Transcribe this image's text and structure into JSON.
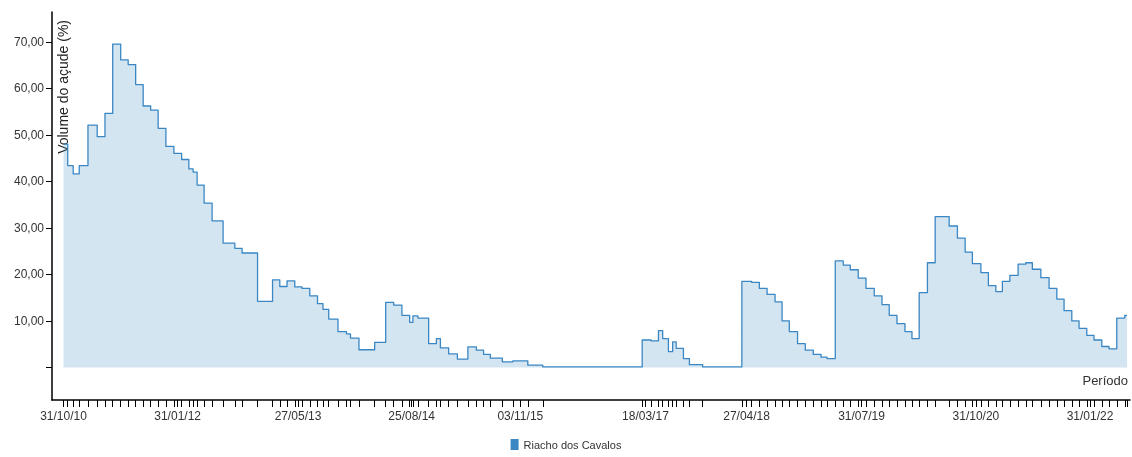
{
  "chart_data": {
    "type": "step",
    "xlabel": "Período",
    "ylabel": "Volume do açude (%)",
    "x": [
      "2010-10-31",
      "2010-11-17",
      "2010-12-09",
      "2011-01-02",
      "2011-02-06",
      "2011-03-15",
      "2011-04-15",
      "2011-05-16",
      "2011-06-17",
      "2011-07-17",
      "2011-08-16",
      "2011-09-15",
      "2011-10-15",
      "2011-11-14",
      "2011-12-15",
      "2012-01-16",
      "2012-02-16",
      "2012-03-16",
      "2012-04-02",
      "2012-04-18",
      "2012-05-16",
      "2012-06-17",
      "2012-07-31",
      "2012-09-16",
      "2012-10-15",
      "2012-12-16",
      "2013-02-14",
      "2013-03-15",
      "2013-04-13",
      "2013-05-14",
      "2013-06-12",
      "2013-07-13",
      "2013-08-13",
      "2013-09-04",
      "2013-09-27",
      "2013-11-03",
      "2013-12-07",
      "2013-12-23",
      "2014-01-26",
      "2014-03-30",
      "2014-05-13",
      "2014-06-14",
      "2014-07-17",
      "2014-08-17",
      "2014-08-30",
      "2014-09-19",
      "2014-11-01",
      "2014-12-02",
      "2014-12-18",
      "2015-01-20",
      "2015-02-24",
      "2015-04-07",
      "2015-05-11",
      "2015-06-09",
      "2015-07-06",
      "2015-08-23",
      "2015-10-04",
      "2015-12-03",
      "2016-02-01",
      "2017-03-05",
      "2017-04-10",
      "2017-05-09",
      "2017-05-26",
      "2017-06-18",
      "2017-07-05",
      "2017-07-19",
      "2017-08-17",
      "2017-09-10",
      "2017-11-02",
      "2018-04-08",
      "2018-05-17",
      "2018-06-17",
      "2018-07-18",
      "2018-08-19",
      "2018-09-16",
      "2018-10-15",
      "2018-11-17",
      "2018-12-18",
      "2019-01-19",
      "2019-02-19",
      "2019-03-15",
      "2019-04-17",
      "2019-05-19",
      "2019-06-16",
      "2019-07-18",
      "2019-08-18",
      "2019-09-20",
      "2019-10-21",
      "2019-11-19",
      "2019-12-20",
      "2020-01-21",
      "2020-02-18",
      "2020-03-18",
      "2020-04-20",
      "2020-05-21",
      "2020-07-16",
      "2020-08-18",
      "2020-09-18",
      "2020-10-17",
      "2020-11-20",
      "2020-12-20",
      "2021-01-19",
      "2021-02-14",
      "2021-03-16",
      "2021-04-18",
      "2021-05-19",
      "2021-06-14",
      "2021-07-18",
      "2021-08-20",
      "2021-09-20",
      "2021-10-19",
      "2021-11-19",
      "2021-12-18",
      "2022-01-18",
      "2022-02-16",
      "2022-03-19",
      "2022-04-17",
      "2022-05-18",
      "2022-06-19",
      "2022-06-28"
    ],
    "series": [
      {
        "name": "Riacho dos Cavalos",
        "color": "#3a87c4",
        "values": [
          48.0,
          43.4,
          41.6,
          43.4,
          52.1,
          49.6,
          54.6,
          69.5,
          66.1,
          65.1,
          60.8,
          56.2,
          55.3,
          51.4,
          47.5,
          46.0,
          44.7,
          42.7,
          42.0,
          39.2,
          35.3,
          31.5,
          26.7,
          25.6,
          24.6,
          14.2,
          18.8,
          17.4,
          18.6,
          17.3,
          17.0,
          15.4,
          13.7,
          12.5,
          10.4,
          7.7,
          7.2,
          6.3,
          3.8,
          5.4,
          14.0,
          13.4,
          11.2,
          9.7,
          11.1,
          10.6,
          5.1,
          6.2,
          4.2,
          2.9,
          1.8,
          4.4,
          3.7,
          2.8,
          2.0,
          1.2,
          1.4,
          0.5,
          0.1,
          5.9,
          5.7,
          7.9,
          6.2,
          3.4,
          5.5,
          4.1,
          1.9,
          0.6,
          0.1,
          18.5,
          18.3,
          17.0,
          15.7,
          14.1,
          10.0,
          7.7,
          5.1,
          3.7,
          2.8,
          2.2,
          1.9,
          22.9,
          22.0,
          21.0,
          19.2,
          17.0,
          15.4,
          13.5,
          11.2,
          9.4,
          7.7,
          6.2,
          16.1,
          22.5,
          32.4,
          30.4,
          27.8,
          24.8,
          22.3,
          20.4,
          17.6,
          16.3,
          18.5,
          19.8,
          22.2,
          22.5,
          21.1,
          19.3,
          17.0,
          14.7,
          12.2,
          10.0,
          8.4,
          6.9,
          5.9,
          4.5,
          4.0,
          10.6,
          11.2,
          11.2
        ]
      }
    ],
    "xlim": [
      "2010-09-15",
      "2022-07-10"
    ],
    "xticks": [
      {
        "value": "2010-10-31",
        "label": "31/10/10"
      },
      {
        "value": "2012-01-31",
        "label": "31/01/12"
      },
      {
        "value": "2013-05-27",
        "label": "27/05/13"
      },
      {
        "value": "2014-08-25",
        "label": "25/08/14"
      },
      {
        "value": "2015-11-03",
        "label": "03/11/15"
      },
      {
        "value": "2017-03-18",
        "label": "18/03/17"
      },
      {
        "value": "2018-04-27",
        "label": "27/04/18"
      },
      {
        "value": "2019-07-31",
        "label": "31/07/19"
      },
      {
        "value": "2020-10-31",
        "label": "31/10/20"
      },
      {
        "value": "2022-01-31",
        "label": "31/01/22"
      }
    ],
    "ylim": [
      -7,
      76.4
    ],
    "yticks": [
      {
        "value": 0,
        "label": null
      },
      {
        "value": 10,
        "label": "10,00"
      },
      {
        "value": 20,
        "label": "20,00"
      },
      {
        "value": 30,
        "label": "30,00"
      },
      {
        "value": 40,
        "label": "40,00"
      },
      {
        "value": 50,
        "label": "50,00"
      },
      {
        "value": 60,
        "label": "60,00"
      },
      {
        "value": 70,
        "label": "70,00"
      }
    ],
    "legend": "bottom"
  }
}
